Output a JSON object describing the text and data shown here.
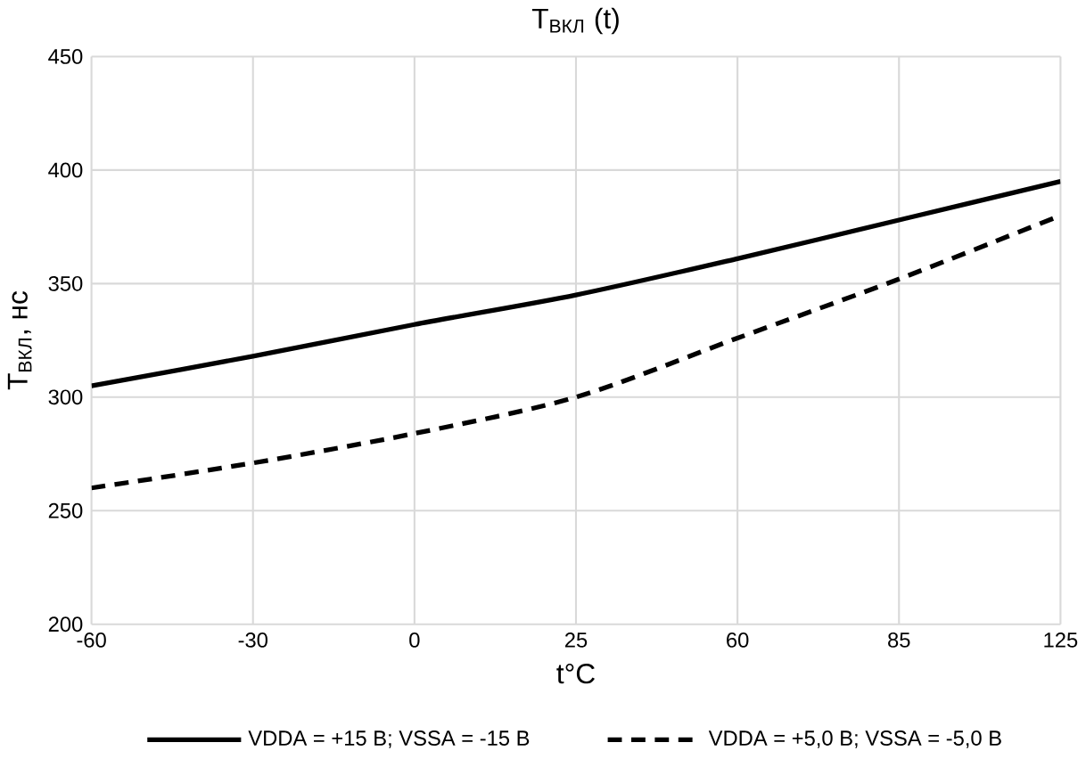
{
  "chart_data": {
    "type": "line",
    "title": "T$_{ВКЛ}$ (t)",
    "xlabel": "t°C",
    "ylabel": "T$_{ВКЛ}$, нс",
    "categories": [
      "-60",
      "-30",
      "0",
      "25",
      "60",
      "85",
      "125"
    ],
    "series": [
      {
        "name": "VDDA = +15 В; VSSA = -15 В",
        "color": "#000000",
        "line_style": "solid",
        "values": [
          305,
          318,
          332,
          345,
          361,
          378,
          395
        ]
      },
      {
        "name": "VDDA = +5,0 В; VSSA = -5,0 В",
        "color": "#000000",
        "line_style": "dashed",
        "values": [
          260,
          271,
          284,
          300,
          326,
          352,
          380
        ]
      }
    ],
    "ylim": [
      200,
      450
    ],
    "yticks": [
      200,
      250,
      300,
      350,
      400,
      450
    ],
    "grid": true,
    "legend": "bottom",
    "marker": "none"
  }
}
